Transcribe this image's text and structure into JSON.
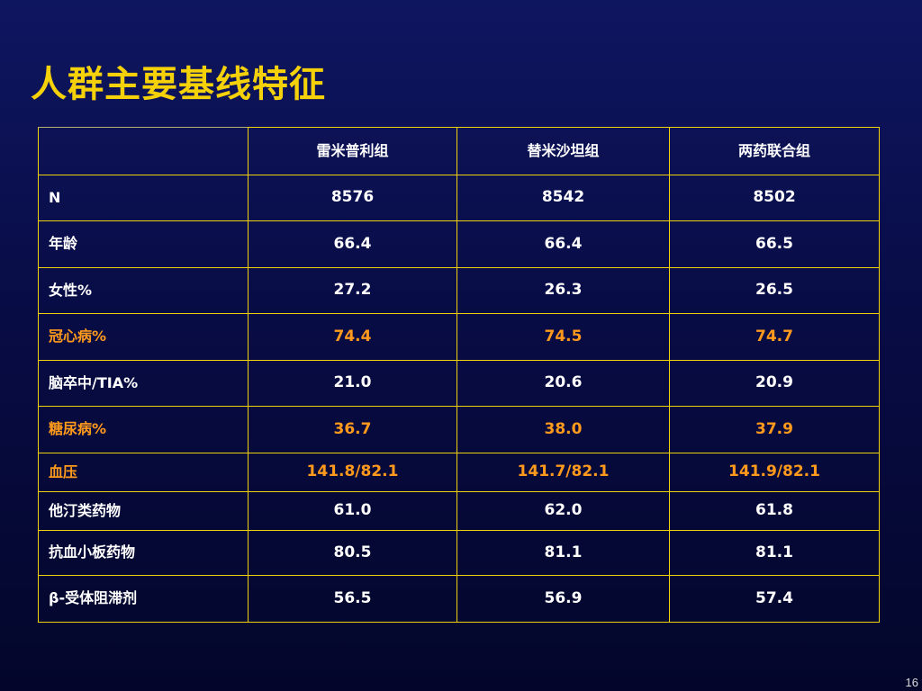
{
  "slide": {
    "title": "人群主要基线特征",
    "page_number": "16",
    "colors": {
      "title": "#f5d10a",
      "border": "#f0d20c",
      "text": "#ffffff",
      "highlight": "#ff9a1c",
      "background": "#080c45"
    }
  },
  "table": {
    "headers": [
      "",
      "雷米普利组",
      "替米沙坦组",
      "两药联合组"
    ],
    "rows": [
      {
        "label": "N",
        "values": [
          "8576",
          "8542",
          "8502"
        ],
        "highlight": false
      },
      {
        "label": "年龄",
        "values": [
          "66.4",
          "66.4",
          "66.5"
        ],
        "highlight": false
      },
      {
        "label": "女性%",
        "values": [
          "27.2",
          "26.3",
          "26.5"
        ],
        "highlight": false
      },
      {
        "label": "冠心病%",
        "values": [
          "74.4",
          "74.5",
          "74.7"
        ],
        "highlight": true
      },
      {
        "label": "脑卒中/TIA%",
        "values": [
          "21.0",
          "20.6",
          "20.9"
        ],
        "highlight": false
      },
      {
        "label": "糖尿病%",
        "values": [
          "36.7",
          "38.0",
          "37.9"
        ],
        "highlight": true
      },
      {
        "label": "血压",
        "values": [
          "141.8/82.1",
          "141.7/82.1",
          "141.9/82.1"
        ],
        "highlight": true
      },
      {
        "label": "他汀类药物",
        "values": [
          "61.0",
          "62.0",
          "61.8"
        ],
        "highlight": false
      },
      {
        "label": "抗血小板药物",
        "values": [
          "80.5",
          "81.1",
          "81.1"
        ],
        "highlight": false
      },
      {
        "label": "β-受体阻滞剂",
        "values": [
          "56.5",
          "56.9",
          "57.4"
        ],
        "highlight": false
      }
    ]
  }
}
